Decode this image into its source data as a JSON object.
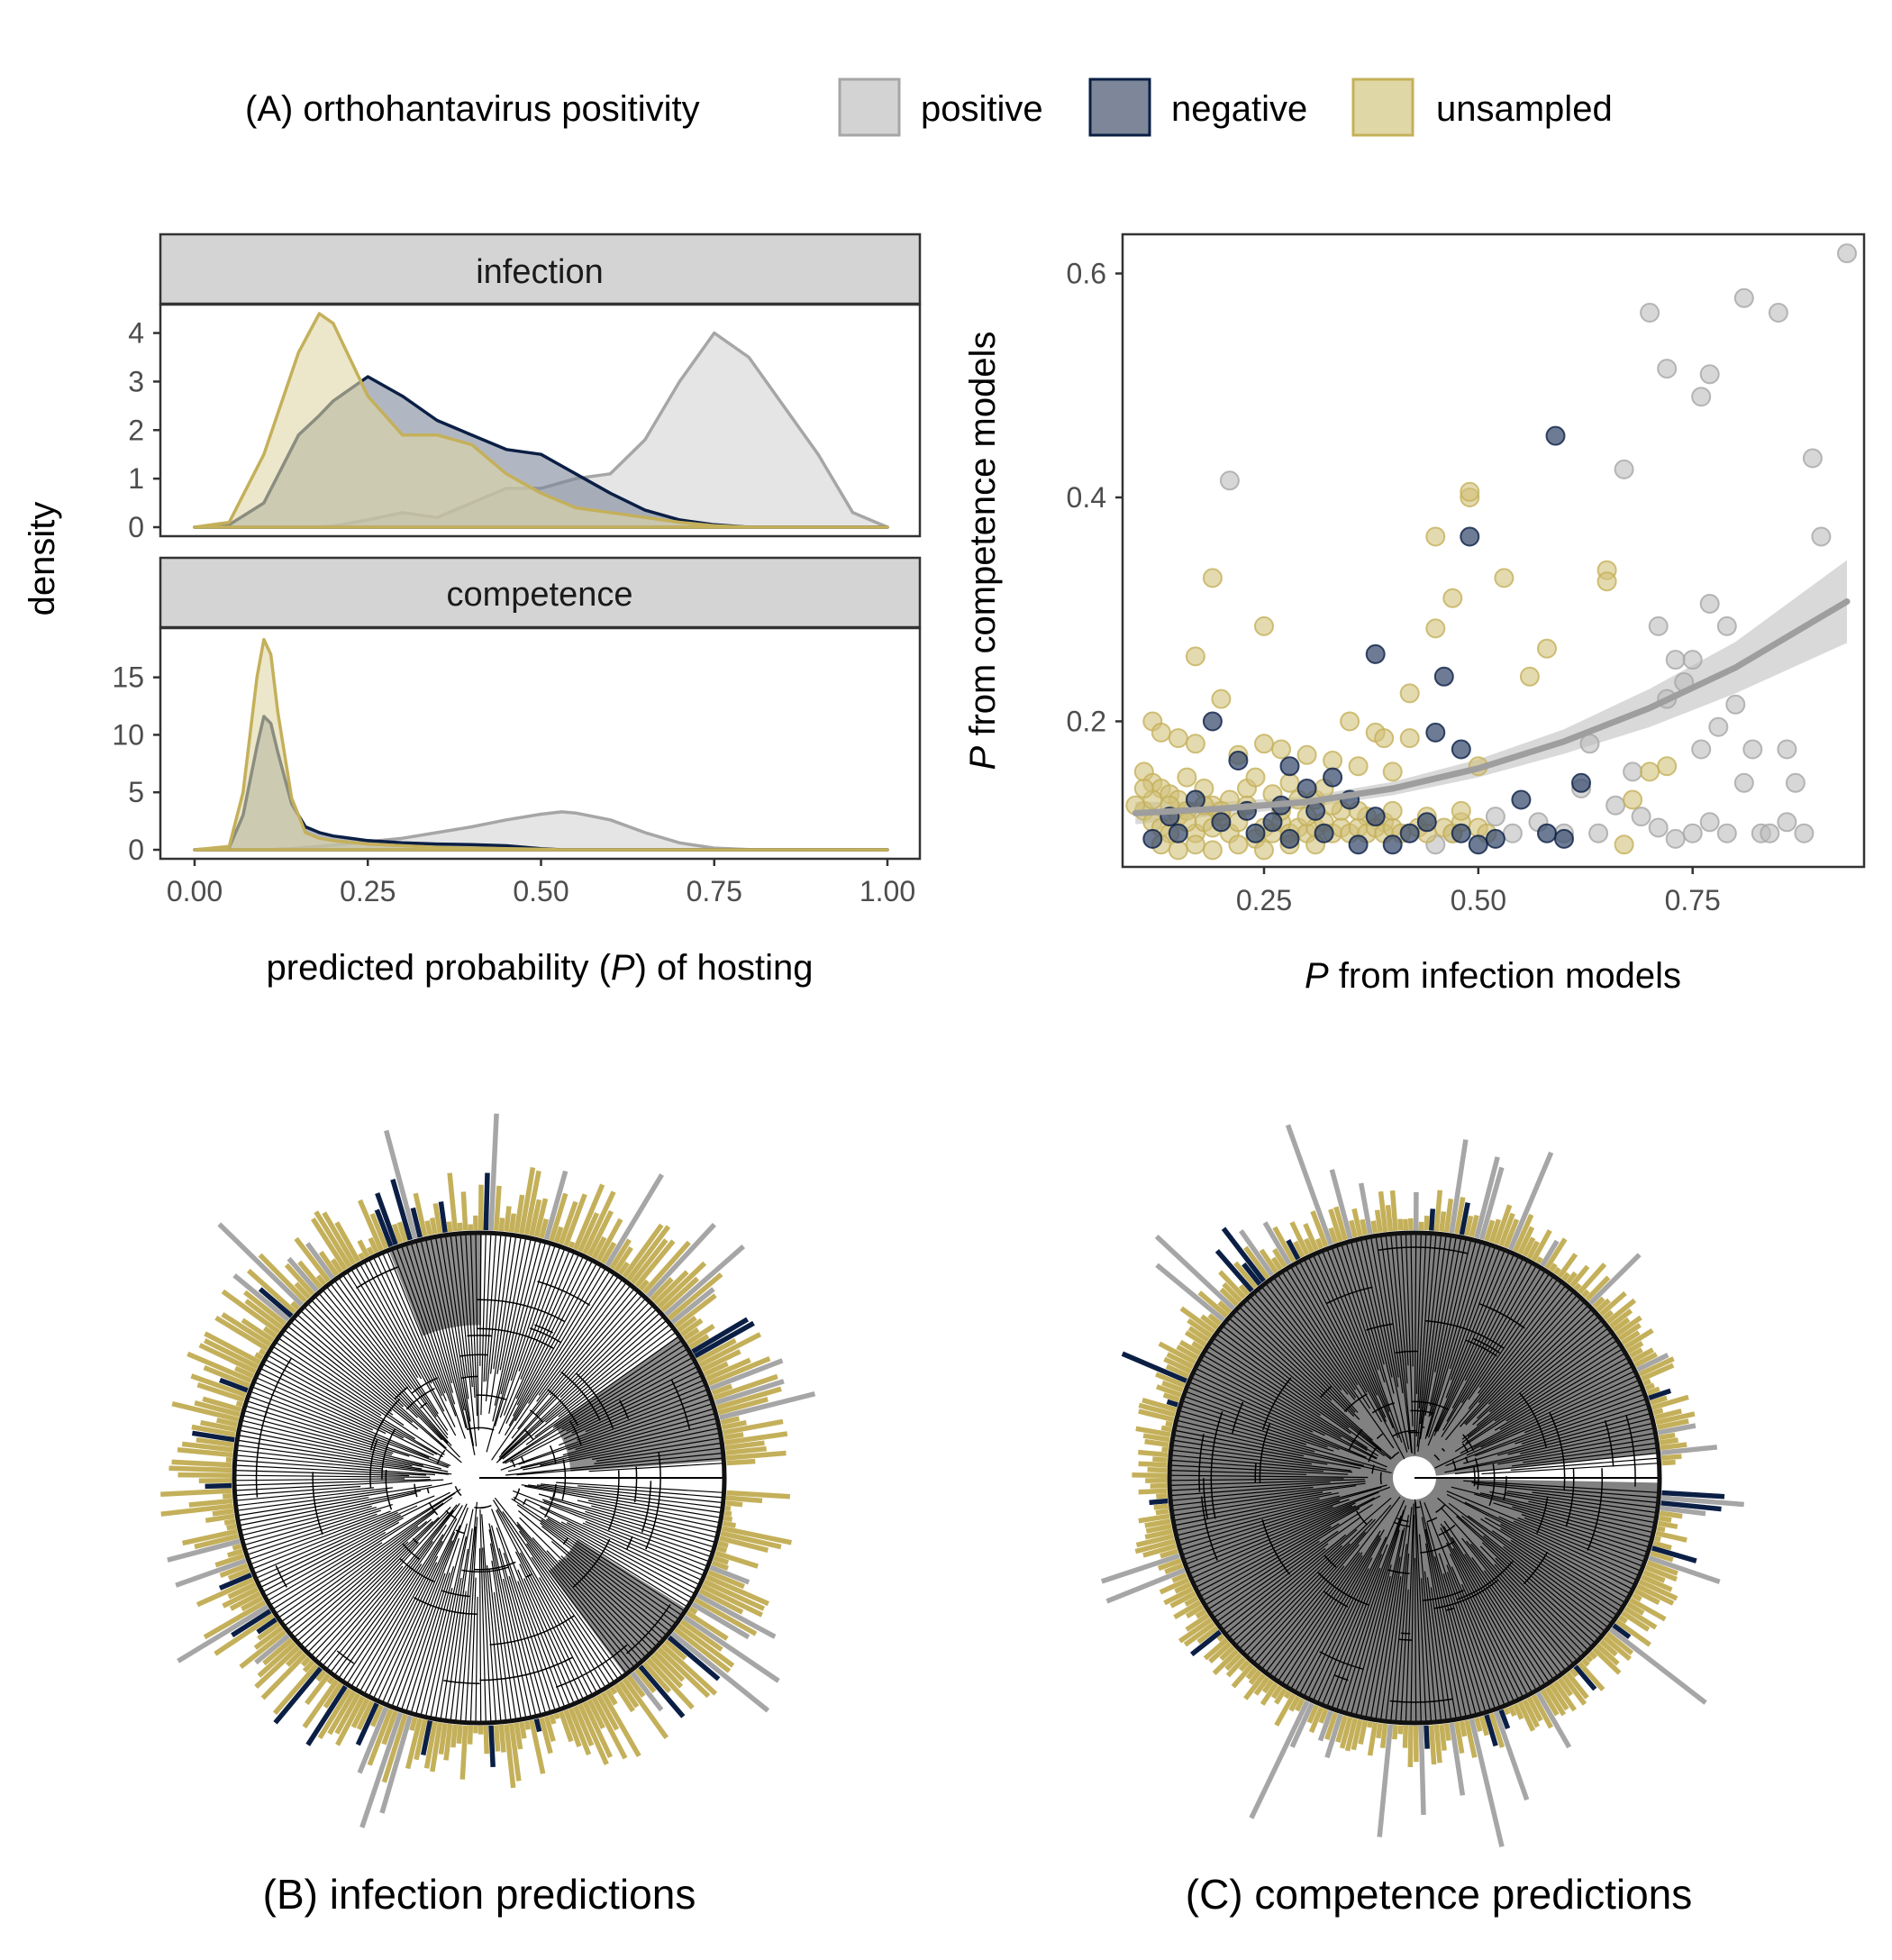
{
  "colors": {
    "positive": "#a6a6a6",
    "positive_fill": "#d3d3d3",
    "negative": "#0b1f45",
    "negative_fill": "#7d8799",
    "unsampled": "#c4b05a",
    "unsampled_fill": "#e0d7a7",
    "smooth": "#9e9e9e",
    "ribbon": "#cccccc",
    "clade": "#7a7a7a",
    "strip": "#d4d4d4"
  },
  "legend": {
    "title": "(A) orthohantavirus positivity",
    "items": [
      {
        "key": "positive",
        "label": "positive"
      },
      {
        "key": "negative",
        "label": "negative"
      },
      {
        "key": "unsampled",
        "label": "unsampled"
      }
    ]
  },
  "panel_a": {
    "ylabel": "density",
    "xlabel_pre": "predicted probability (",
    "xlabel_var": "P",
    "xlabel_post": ") of hosting"
  },
  "panel_scatter": {
    "xlabel_var": "P",
    "xlabel_rest": " from infection models",
    "ylabel_var": "P",
    "ylabel_rest": " from competence models"
  },
  "captions": {
    "b": "(B) infection predictions",
    "c": "(C) competence predictions"
  },
  "chart_data": [
    {
      "type": "area",
      "facet": "infection",
      "xlim": [
        0,
        1
      ],
      "ylim": [
        0,
        4.4
      ],
      "x_ticks": [
        "0.00",
        "0.25",
        "0.50",
        "0.75",
        "1.00"
      ],
      "y_ticks": [
        "0",
        "1",
        "2",
        "3",
        "4"
      ],
      "x": [
        0.0,
        0.05,
        0.1,
        0.15,
        0.18,
        0.2,
        0.25,
        0.3,
        0.35,
        0.4,
        0.45,
        0.5,
        0.55,
        0.6,
        0.65,
        0.7,
        0.75,
        0.8,
        0.85,
        0.9,
        0.95,
        1.0
      ],
      "series": [
        {
          "name": "positive",
          "values": [
            0,
            0,
            0,
            0,
            0,
            0.02,
            0.15,
            0.3,
            0.2,
            0.5,
            0.8,
            0.8,
            1.0,
            1.1,
            1.8,
            3.0,
            4.0,
            3.5,
            2.5,
            1.5,
            0.3,
            0
          ]
        },
        {
          "name": "negative",
          "values": [
            0,
            0.05,
            0.5,
            1.9,
            2.3,
            2.6,
            3.1,
            2.7,
            2.2,
            1.9,
            1.6,
            1.5,
            1.1,
            0.7,
            0.35,
            0.15,
            0.05,
            0,
            0,
            0,
            0,
            0
          ]
        },
        {
          "name": "unsampled",
          "values": [
            0,
            0.1,
            1.5,
            3.6,
            4.4,
            4.2,
            2.7,
            1.9,
            1.9,
            1.7,
            1.1,
            0.7,
            0.4,
            0.3,
            0.2,
            0.1,
            0.03,
            0,
            0,
            0,
            0,
            0
          ]
        }
      ]
    },
    {
      "type": "area",
      "facet": "competence",
      "xlim": [
        0,
        1
      ],
      "ylim": [
        0,
        18.5
      ],
      "x_ticks": [
        "0.00",
        "0.25",
        "0.50",
        "0.75",
        "1.00"
      ],
      "y_ticks": [
        "0",
        "5",
        "10",
        "15"
      ],
      "x": [
        0.0,
        0.05,
        0.07,
        0.09,
        0.1,
        0.11,
        0.12,
        0.14,
        0.16,
        0.18,
        0.2,
        0.25,
        0.3,
        0.35,
        0.4,
        0.45,
        0.5,
        0.53,
        0.55,
        0.6,
        0.65,
        0.7,
        0.75,
        0.8,
        1.0
      ],
      "series": [
        {
          "name": "positive",
          "values": [
            0,
            0,
            0,
            0,
            0,
            0,
            0.05,
            0.1,
            0.2,
            0.3,
            0.4,
            0.7,
            1.0,
            1.5,
            2.0,
            2.6,
            3.1,
            3.3,
            3.2,
            2.6,
            1.5,
            0.6,
            0.15,
            0.02,
            0
          ]
        },
        {
          "name": "negative",
          "values": [
            0,
            0.2,
            3.0,
            9.0,
            11.6,
            11.0,
            8.5,
            4.0,
            2.0,
            1.5,
            1.2,
            0.8,
            0.6,
            0.5,
            0.45,
            0.35,
            0.1,
            0,
            0,
            0,
            0,
            0,
            0,
            0,
            0
          ]
        },
        {
          "name": "unsampled",
          "values": [
            0,
            0.3,
            5.0,
            15.0,
            18.3,
            17.0,
            12.0,
            4.5,
            1.5,
            1.0,
            0.8,
            0.5,
            0.35,
            0.2,
            0.15,
            0.1,
            0.05,
            0,
            0,
            0,
            0,
            0,
            0,
            0,
            0
          ]
        }
      ]
    },
    {
      "type": "scatter",
      "xlim": [
        0.085,
        0.95
      ],
      "ylim": [
        0.07,
        0.635
      ],
      "x_ticks": [
        "0.25",
        "0.50",
        "0.75"
      ],
      "y_ticks": [
        "0.2",
        "0.4",
        "0.6"
      ],
      "series": [
        {
          "name": "positive",
          "points": [
            [
              0.21,
              0.415
            ],
            [
              0.7,
              0.565
            ],
            [
              0.72,
              0.515
            ],
            [
              0.76,
              0.49
            ],
            [
              0.77,
              0.51
            ],
            [
              0.81,
              0.578
            ],
            [
              0.85,
              0.565
            ],
            [
              0.93,
              0.618
            ],
            [
              0.67,
              0.425
            ],
            [
              0.89,
              0.435
            ],
            [
              0.9,
              0.365
            ],
            [
              0.71,
              0.285
            ],
            [
              0.73,
              0.255
            ],
            [
              0.75,
              0.255
            ],
            [
              0.77,
              0.305
            ],
            [
              0.79,
              0.285
            ],
            [
              0.74,
              0.235
            ],
            [
              0.72,
              0.22
            ],
            [
              0.8,
              0.215
            ],
            [
              0.78,
              0.195
            ],
            [
              0.82,
              0.175
            ],
            [
              0.86,
              0.175
            ],
            [
              0.76,
              0.175
            ],
            [
              0.68,
              0.155
            ],
            [
              0.69,
              0.115
            ],
            [
              0.71,
              0.105
            ],
            [
              0.73,
              0.095
            ],
            [
              0.75,
              0.1
            ],
            [
              0.77,
              0.11
            ],
            [
              0.79,
              0.1
            ],
            [
              0.83,
              0.1
            ],
            [
              0.84,
              0.1
            ],
            [
              0.86,
              0.11
            ],
            [
              0.88,
              0.1
            ],
            [
              0.87,
              0.145
            ],
            [
              0.81,
              0.145
            ],
            [
              0.63,
              0.18
            ],
            [
              0.62,
              0.14
            ],
            [
              0.6,
              0.1
            ],
            [
              0.57,
              0.11
            ],
            [
              0.54,
              0.1
            ],
            [
              0.52,
              0.115
            ],
            [
              0.47,
              0.1
            ],
            [
              0.45,
              0.09
            ],
            [
              0.64,
              0.1
            ],
            [
              0.66,
              0.125
            ]
          ]
        },
        {
          "name": "negative",
          "points": [
            [
              0.59,
              0.455
            ],
            [
              0.49,
              0.365
            ],
            [
              0.38,
              0.26
            ],
            [
              0.46,
              0.24
            ],
            [
              0.45,
              0.19
            ],
            [
              0.48,
              0.175
            ],
            [
              0.19,
              0.2
            ],
            [
              0.22,
              0.165
            ],
            [
              0.28,
              0.16
            ],
            [
              0.33,
              0.15
            ],
            [
              0.3,
              0.14
            ],
            [
              0.35,
              0.13
            ],
            [
              0.14,
              0.115
            ],
            [
              0.17,
              0.13
            ],
            [
              0.2,
              0.11
            ],
            [
              0.24,
              0.1
            ],
            [
              0.26,
              0.11
            ],
            [
              0.28,
              0.095
            ],
            [
              0.32,
              0.1
            ],
            [
              0.36,
              0.09
            ],
            [
              0.4,
              0.09
            ],
            [
              0.42,
              0.1
            ],
            [
              0.44,
              0.11
            ],
            [
              0.48,
              0.1
            ],
            [
              0.5,
              0.09
            ],
            [
              0.52,
              0.095
            ],
            [
              0.55,
              0.13
            ],
            [
              0.58,
              0.1
            ],
            [
              0.6,
              0.095
            ],
            [
              0.62,
              0.145
            ],
            [
              0.12,
              0.095
            ],
            [
              0.15,
              0.1
            ],
            [
              0.23,
              0.12
            ],
            [
              0.27,
              0.125
            ],
            [
              0.31,
              0.12
            ],
            [
              0.38,
              0.115
            ]
          ]
        },
        {
          "name": "unsampled",
          "points": [
            [
              0.49,
              0.4
            ],
            [
              0.49,
              0.405
            ],
            [
              0.45,
              0.365
            ],
            [
              0.65,
              0.335
            ],
            [
              0.65,
              0.325
            ],
            [
              0.53,
              0.328
            ],
            [
              0.47,
              0.31
            ],
            [
              0.19,
              0.328
            ],
            [
              0.17,
              0.258
            ],
            [
              0.25,
              0.285
            ],
            [
              0.45,
              0.283
            ],
            [
              0.58,
              0.265
            ],
            [
              0.56,
              0.24
            ],
            [
              0.42,
              0.225
            ],
            [
              0.2,
              0.22
            ],
            [
              0.35,
              0.2
            ],
            [
              0.38,
              0.19
            ],
            [
              0.39,
              0.185
            ],
            [
              0.42,
              0.185
            ],
            [
              0.12,
              0.2
            ],
            [
              0.13,
              0.19
            ],
            [
              0.15,
              0.185
            ],
            [
              0.17,
              0.18
            ],
            [
              0.25,
              0.18
            ],
            [
              0.27,
              0.175
            ],
            [
              0.22,
              0.17
            ],
            [
              0.3,
              0.17
            ],
            [
              0.33,
              0.165
            ],
            [
              0.36,
              0.16
            ],
            [
              0.4,
              0.155
            ],
            [
              0.5,
              0.16
            ],
            [
              0.7,
              0.155
            ],
            [
              0.72,
              0.16
            ],
            [
              0.68,
              0.13
            ],
            [
              0.67,
              0.09
            ],
            [
              0.11,
              0.155
            ],
            [
              0.12,
              0.145
            ],
            [
              0.13,
              0.14
            ],
            [
              0.14,
              0.135
            ],
            [
              0.15,
              0.13
            ],
            [
              0.16,
              0.15
            ],
            [
              0.18,
              0.14
            ],
            [
              0.19,
              0.125
            ],
            [
              0.21,
              0.13
            ],
            [
              0.23,
              0.14
            ],
            [
              0.26,
              0.135
            ],
            [
              0.29,
              0.13
            ],
            [
              0.31,
              0.13
            ],
            [
              0.34,
              0.12
            ],
            [
              0.37,
              0.115
            ],
            [
              0.39,
              0.11
            ],
            [
              0.11,
              0.12
            ],
            [
              0.12,
              0.11
            ],
            [
              0.13,
              0.105
            ],
            [
              0.14,
              0.1
            ],
            [
              0.15,
              0.115
            ],
            [
              0.16,
              0.12
            ],
            [
              0.17,
              0.1
            ],
            [
              0.18,
              0.11
            ],
            [
              0.19,
              0.105
            ],
            [
              0.2,
              0.115
            ],
            [
              0.21,
              0.1
            ],
            [
              0.22,
              0.11
            ],
            [
              0.24,
              0.095
            ],
            [
              0.25,
              0.105
            ],
            [
              0.26,
              0.1
            ],
            [
              0.27,
              0.11
            ],
            [
              0.28,
              0.1
            ],
            [
              0.29,
              0.105
            ],
            [
              0.3,
              0.1
            ],
            [
              0.31,
              0.105
            ],
            [
              0.32,
              0.11
            ],
            [
              0.33,
              0.1
            ],
            [
              0.34,
              0.105
            ],
            [
              0.35,
              0.1
            ],
            [
              0.36,
              0.105
            ],
            [
              0.37,
              0.1
            ],
            [
              0.38,
              0.105
            ],
            [
              0.39,
              0.1
            ],
            [
              0.4,
              0.105
            ],
            [
              0.41,
              0.1
            ],
            [
              0.43,
              0.105
            ],
            [
              0.44,
              0.1
            ],
            [
              0.46,
              0.105
            ],
            [
              0.47,
              0.1
            ],
            [
              0.48,
              0.11
            ],
            [
              0.5,
              0.105
            ],
            [
              0.51,
              0.1
            ],
            [
              0.13,
              0.09
            ],
            [
              0.15,
              0.085
            ],
            [
              0.17,
              0.09
            ],
            [
              0.19,
              0.085
            ],
            [
              0.22,
              0.09
            ],
            [
              0.25,
              0.085
            ],
            [
              0.28,
              0.09
            ],
            [
              0.31,
              0.09
            ],
            [
              0.14,
              0.125
            ],
            [
              0.16,
              0.11
            ],
            [
              0.18,
              0.125
            ],
            [
              0.2,
              0.12
            ],
            [
              0.23,
              0.125
            ],
            [
              0.27,
              0.12
            ],
            [
              0.3,
              0.115
            ],
            [
              0.33,
              0.125
            ],
            [
              0.36,
              0.12
            ],
            [
              0.4,
              0.12
            ],
            [
              0.44,
              0.115
            ],
            [
              0.48,
              0.12
            ],
            [
              0.12,
              0.13
            ],
            [
              0.24,
              0.15
            ],
            [
              0.28,
              0.145
            ],
            [
              0.32,
              0.14
            ],
            [
              0.1,
              0.125
            ],
            [
              0.11,
              0.14
            ]
          ]
        }
      ],
      "smooth": {
        "x": [
          0.1,
          0.2,
          0.3,
          0.4,
          0.5,
          0.6,
          0.7,
          0.8,
          0.93
        ],
        "y": [
          0.118,
          0.122,
          0.128,
          0.14,
          0.158,
          0.182,
          0.212,
          0.248,
          0.307
        ],
        "lower": [
          0.108,
          0.116,
          0.123,
          0.134,
          0.15,
          0.171,
          0.195,
          0.225,
          0.27
        ],
        "upper": [
          0.128,
          0.128,
          0.133,
          0.146,
          0.166,
          0.193,
          0.229,
          0.271,
          0.344
        ]
      }
    }
  ]
}
